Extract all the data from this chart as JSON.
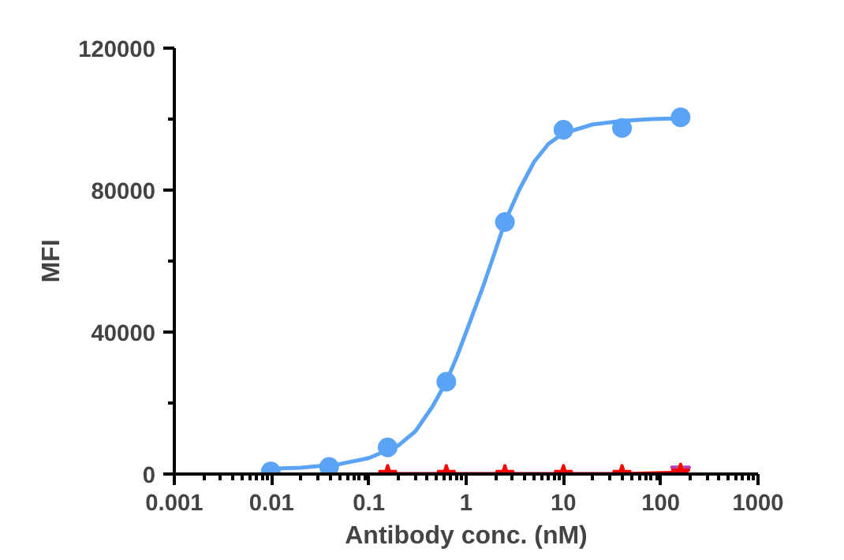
{
  "chart_data": {
    "type": "scatter",
    "xlabel": "Antibody conc. (nM)",
    "ylabel": "MFI",
    "log": "x",
    "xlim": [
      0.001,
      1000
    ],
    "ylim": [
      0,
      120000
    ],
    "xticks": [
      0.001,
      0.01,
      0.1,
      1,
      10,
      100,
      1000
    ],
    "yticks": [
      0,
      40000,
      80000,
      120000
    ],
    "grid": false,
    "series": [
      {
        "type": "line",
        "color": "#5ba3f5",
        "x": [
          0.0098,
          0.02,
          0.05,
          0.1,
          0.2,
          0.3,
          0.45,
          0.625,
          0.8,
          1,
          1.5,
          2,
          2.5,
          3.5,
          5,
          7,
          10,
          20,
          40,
          80,
          160
        ],
        "values": [
          1500,
          1800,
          2800,
          4500,
          8000,
          12000,
          19000,
          26000,
          33000,
          40000,
          53000,
          63000,
          71000,
          80000,
          88000,
          93000,
          96000,
          98500,
          99500,
          100000,
          100200
        ],
        "marker": "none"
      },
      {
        "color": "#5ba3f5",
        "x": [
          0.0098,
          0.039,
          0.156,
          0.625,
          2.5,
          10,
          40,
          160
        ],
        "values": [
          700,
          2000,
          7500,
          26000,
          71000,
          97000,
          97500,
          100500
        ],
        "marker": "circle"
      },
      {
        "color": "#b040c0",
        "x": [
          160
        ],
        "values": [
          500
        ],
        "marker": "triangle"
      },
      {
        "color": "#c8b400",
        "x": [
          160
        ],
        "values": [
          0
        ],
        "marker": "diamond"
      },
      {
        "type": "line",
        "color": "#ff0000",
        "x": [
          0.156,
          0.625,
          2.5,
          10,
          40,
          160
        ],
        "values": [
          0,
          0,
          0,
          0,
          0,
          400
        ],
        "marker": "star"
      }
    ]
  }
}
